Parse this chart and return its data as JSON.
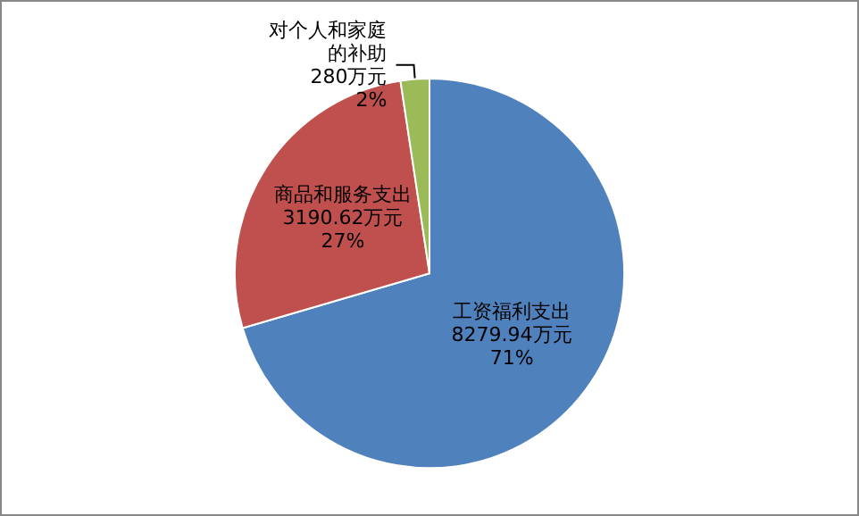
{
  "chart_data": {
    "type": "pie",
    "categories": [
      "工资福利支出",
      "商品和服务支出",
      "对个人和家庭的补助"
    ],
    "values": [
      8279.94,
      3190.62,
      280
    ],
    "colors": [
      "#4f81bd",
      "#c0504d",
      "#9bbb59"
    ],
    "value_labels": [
      "8279.94万元\n71%",
      "3190.62万元\n27%",
      "280万元\n2%"
    ],
    "legend": false
  }
}
